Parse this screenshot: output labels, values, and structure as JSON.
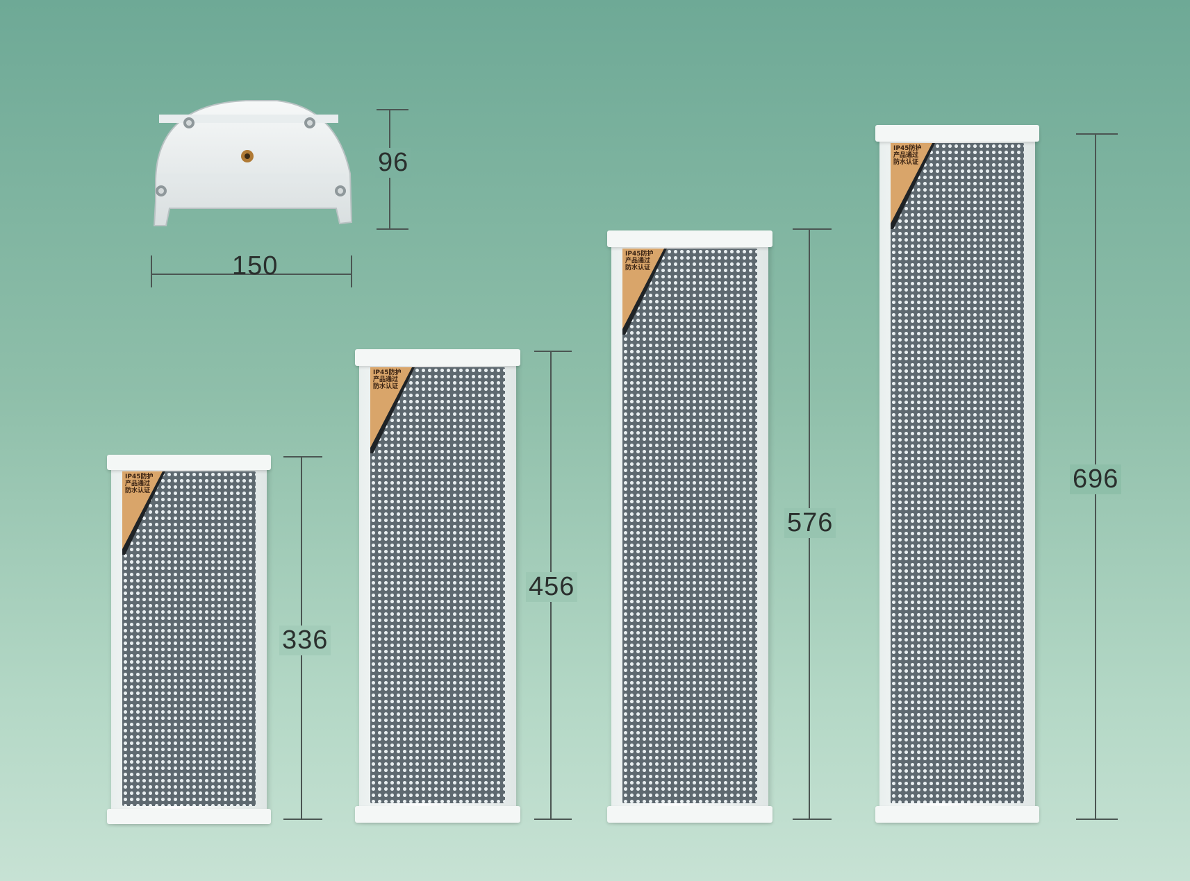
{
  "bracket": {
    "width_label": "150",
    "height_label": "96"
  },
  "speakers": [
    {
      "height_label": "336",
      "badge_text": "IP45防护\n产品通过\n防水认证"
    },
    {
      "height_label": "456",
      "badge_text": "IP45防护\n产品通过\n防水认证"
    },
    {
      "height_label": "576",
      "badge_text": "IP45防护\n产品通过\n防水认证"
    },
    {
      "height_label": "696",
      "badge_text": "IP45防护\n产品通过\n防水认证"
    }
  ],
  "colors": {
    "background_top": "#6ea996",
    "background_bottom": "#c7e2d4",
    "speaker_frame": "#f4f7f6",
    "grille": "#5e6970",
    "badge": "#d9a56a"
  }
}
